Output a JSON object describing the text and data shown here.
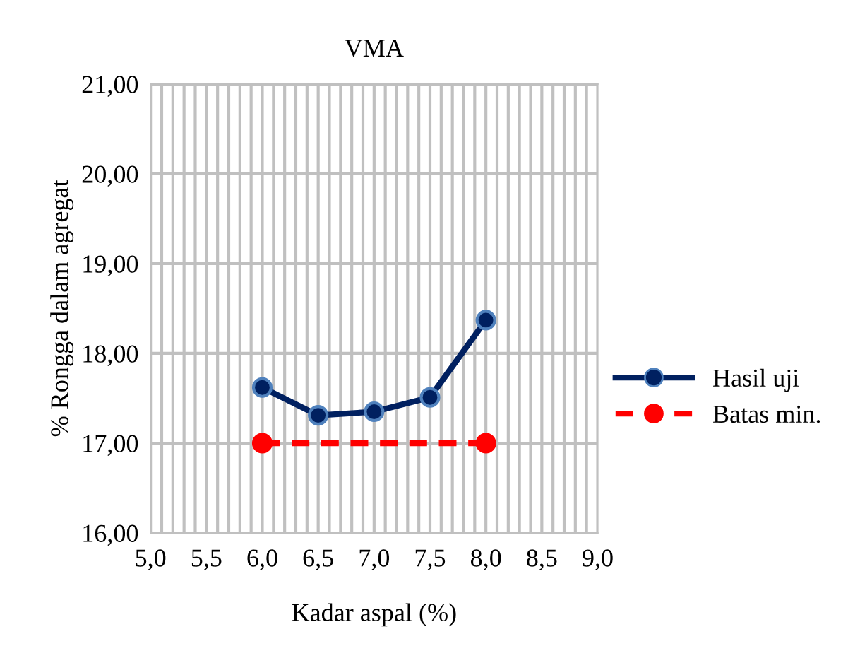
{
  "chart_data": {
    "type": "line",
    "title": "VMA",
    "xlabel": "Kadar aspal (%)",
    "ylabel": "% Rongga dalam agregat",
    "series": [
      {
        "name": "Hasil uji",
        "color": "#002060",
        "x": [
          6.0,
          6.5,
          7.0,
          7.5,
          8.0
        ],
        "values": [
          17.62,
          17.31,
          17.35,
          17.51,
          18.37
        ],
        "line_style": "solid",
        "marker": "circle"
      },
      {
        "name": "Batas min.",
        "color": "#ff0000",
        "x": [
          6.0,
          8.0
        ],
        "values": [
          17.0,
          17.0
        ],
        "line_style": "dashed",
        "marker": "circle"
      }
    ],
    "xlim": [
      5.0,
      9.0
    ],
    "xticks": [
      {
        "value": 5.0,
        "label": "5,0"
      },
      {
        "value": 5.5,
        "label": "5,5"
      },
      {
        "value": 6.0,
        "label": "6,0"
      },
      {
        "value": 6.5,
        "label": "6,5"
      },
      {
        "value": 7.0,
        "label": "7,0"
      },
      {
        "value": 7.5,
        "label": "7,5"
      },
      {
        "value": 8.0,
        "label": "8,0"
      },
      {
        "value": 8.5,
        "label": "8,5"
      },
      {
        "value": 9.0,
        "label": "9,0"
      }
    ],
    "ylim": [
      16.0,
      21.0
    ],
    "yticks": [
      {
        "value": 16,
        "label": "16,00"
      },
      {
        "value": 17,
        "label": "17,00"
      },
      {
        "value": 18,
        "label": "18,00"
      },
      {
        "value": 19,
        "label": "19,00"
      },
      {
        "value": 20,
        "label": "20,00"
      },
      {
        "value": 21,
        "label": "21,00"
      }
    ],
    "grid": true,
    "legend": "right"
  }
}
